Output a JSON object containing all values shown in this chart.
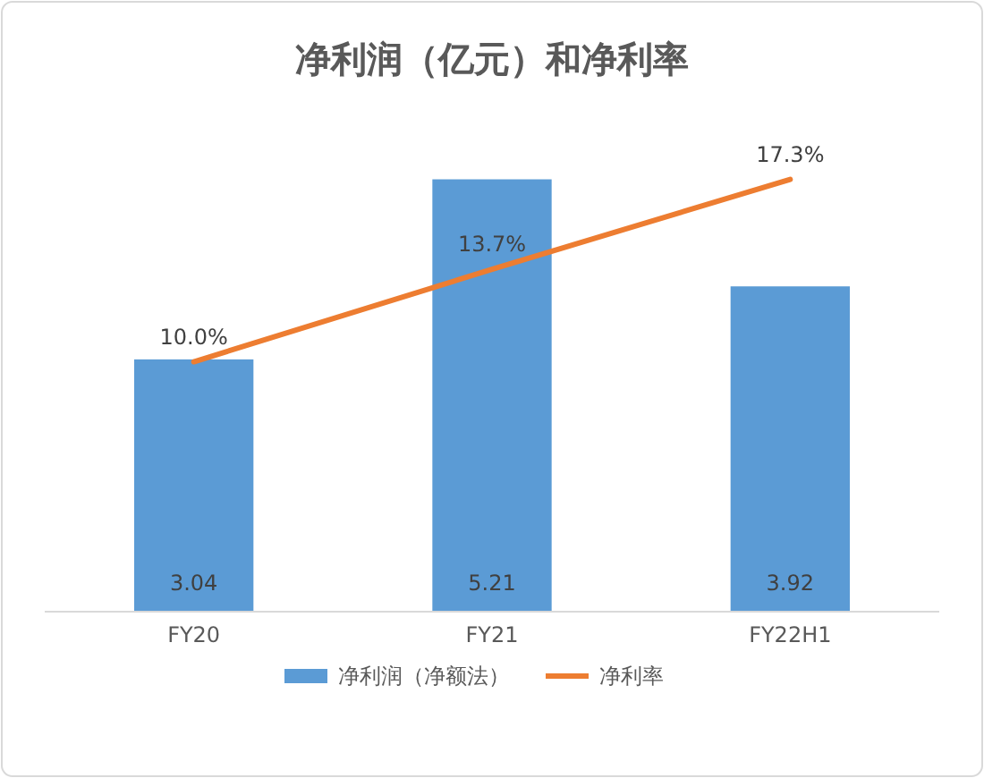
{
  "chart_data": {
    "type": "bar",
    "title": "净利润（亿元）和净利率",
    "categories": [
      "FY20",
      "FY21",
      "FY22H1"
    ],
    "series": [
      {
        "name": "净利润（净额法）",
        "color": "#5b9bd5",
        "values": [
          3.04,
          5.21,
          3.92
        ],
        "value_labels": [
          "3.04",
          "5.21",
          "3.92"
        ]
      },
      {
        "name": "净利率",
        "type": "line",
        "axis": "y2",
        "color": "#ed7d31",
        "values": [
          10.0,
          13.7,
          17.3
        ],
        "value_labels": [
          "10.0%",
          "13.7%",
          "17.3%"
        ]
      }
    ],
    "tick_labels": "x",
    "legend": "bottom",
    "marker": "none",
    "line_style": "solid"
  }
}
